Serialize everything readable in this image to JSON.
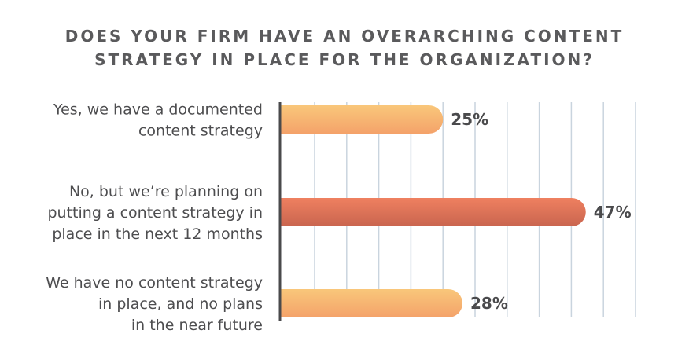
{
  "chart_data": {
    "type": "bar",
    "orientation": "horizontal",
    "title_lines": [
      "DOES YOUR FIRM HAVE AN OVERARCHING CONTENT",
      "STRATEGY IN PLACE FOR THE ORGANIZATION?"
    ],
    "categories": [
      [
        "Yes, we have a documented",
        "content strategy"
      ],
      [
        "No, but we’re planning on",
        "putting a content strategy in",
        "place in the next 12 months"
      ],
      [
        "We have no content strategy",
        "in place, and no plans",
        "in the near future"
      ]
    ],
    "values": [
      25,
      47,
      28
    ],
    "value_labels": [
      "25%",
      "47%",
      "28%"
    ],
    "xlim": [
      0,
      55
    ],
    "grid": true,
    "colors": {
      "bar_light_top": "#f9c77a",
      "bar_light_bottom": "#f4a26a",
      "bar_dark_top": "#ef8060",
      "bar_dark_bottom": "#c9654f",
      "grid": "#c9d4de",
      "axis": "#4a4a4c"
    }
  }
}
